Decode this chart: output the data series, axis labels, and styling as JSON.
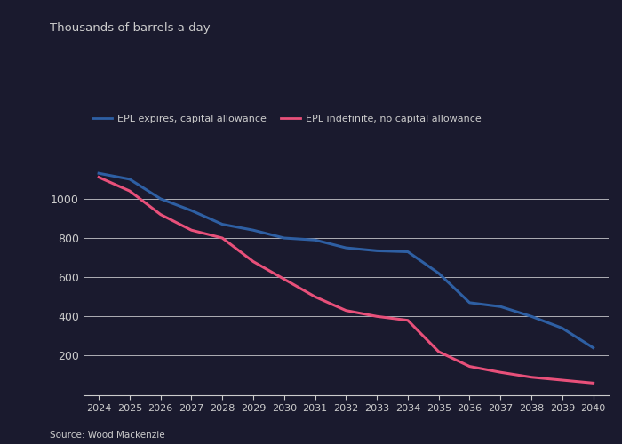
{
  "title": "Thousands of barrels a day",
  "source": "Source: Wood Mackenzie",
  "legend": [
    {
      "label": "EPL expires, capital allowance",
      "color": "#2e5fa3"
    },
    {
      "label": "EPL indefinite, no capital allowance",
      "color": "#e8507a"
    }
  ],
  "blue_x": [
    2024,
    2025,
    2026,
    2027,
    2028,
    2029,
    2030,
    2031,
    2032,
    2033,
    2034,
    2035,
    2036,
    2037,
    2038,
    2039,
    2040
  ],
  "blue_y": [
    1130,
    1100,
    1000,
    940,
    870,
    840,
    800,
    790,
    750,
    735,
    730,
    620,
    470,
    450,
    400,
    340,
    240
  ],
  "pink_x": [
    2024,
    2025,
    2026,
    2027,
    2028,
    2029,
    2030,
    2031,
    2032,
    2033,
    2034,
    2035,
    2036,
    2037,
    2038,
    2039,
    2040
  ],
  "pink_y": [
    1110,
    1040,
    920,
    840,
    800,
    680,
    590,
    500,
    430,
    400,
    380,
    220,
    145,
    115,
    90,
    75,
    60
  ],
  "xlim": [
    2023.5,
    2040.5
  ],
  "ylim": [
    0,
    1250
  ],
  "yticks": [
    200,
    400,
    600,
    800,
    1000
  ],
  "xticks": [
    2024,
    2025,
    2026,
    2027,
    2028,
    2029,
    2030,
    2031,
    2032,
    2033,
    2034,
    2035,
    2036,
    2037,
    2038,
    2039,
    2040
  ],
  "background_color": "#1a1a2e",
  "plot_bg_color": "#12121e",
  "grid_color": "#ffffff",
  "tick_color": "#cccccc",
  "text_color": "#cccccc",
  "line_width": 2.2
}
